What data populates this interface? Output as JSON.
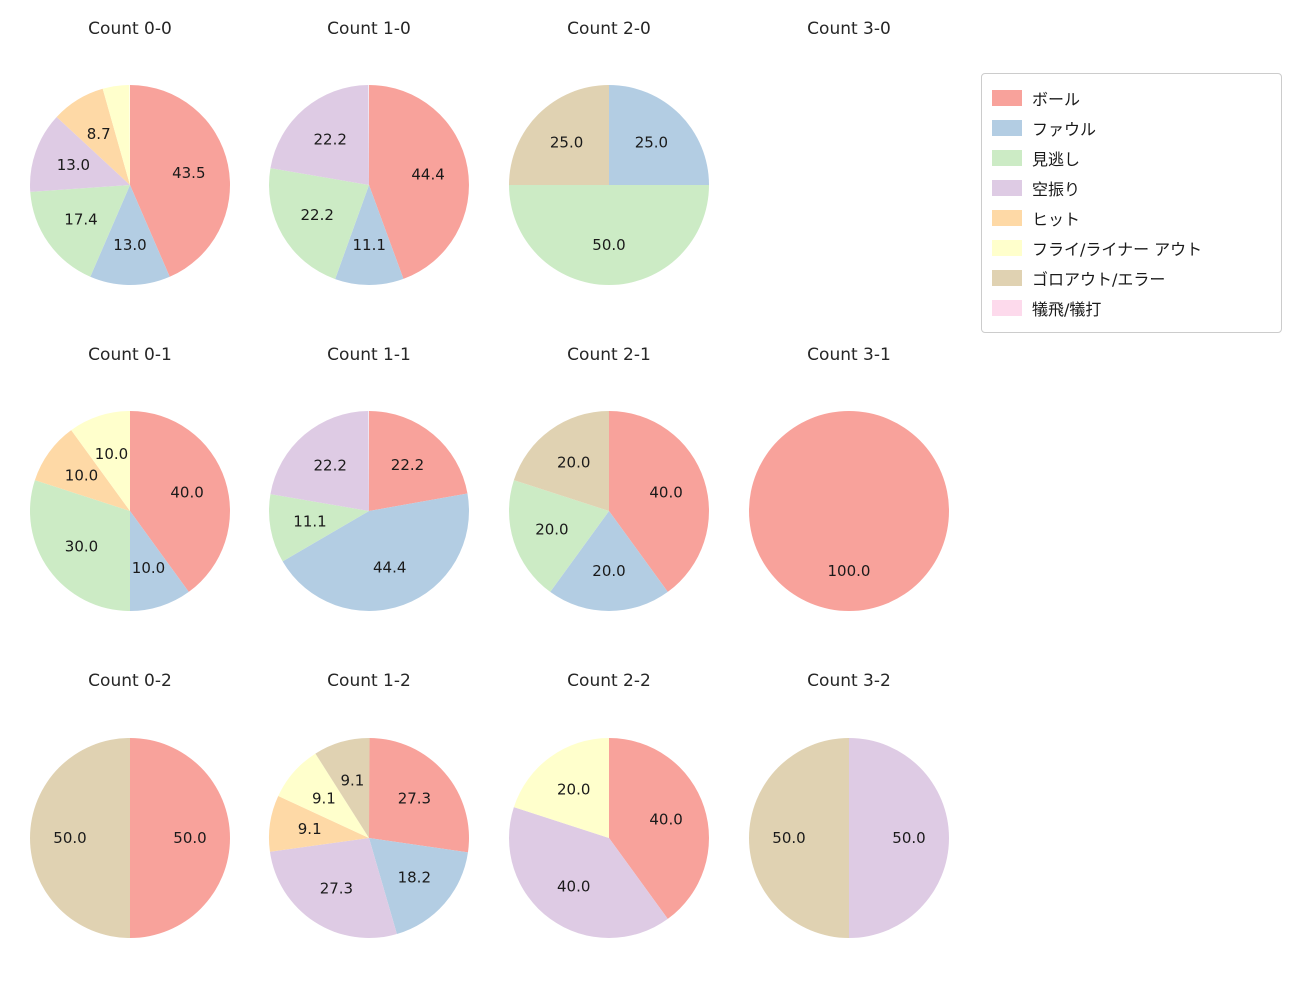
{
  "legend": {
    "items": [
      {
        "label": "ボール",
        "color": "#f8a29b"
      },
      {
        "label": "ファウル",
        "color": "#b3cde3"
      },
      {
        "label": "見逃し",
        "color": "#ccebc5"
      },
      {
        "label": "空振り",
        "color": "#decbe4"
      },
      {
        "label": "ヒット",
        "color": "#fed9a6"
      },
      {
        "label": "フライ/ライナー アウト",
        "color": "#ffffcc"
      },
      {
        "label": "ゴロアウト/エラー",
        "color": "#e0d2b2"
      },
      {
        "label": "犠飛/犠打",
        "color": "#fddaec"
      }
    ]
  },
  "chart_data": [
    {
      "type": "pie",
      "title": "Count 0-0",
      "values_unit": "percent",
      "start_angle": "top",
      "direction": "clockwise",
      "slices": [
        {
          "label": "ボール",
          "value": 43.5
        },
        {
          "label": "ファウル",
          "value": 13.0
        },
        {
          "label": "見逃し",
          "value": 17.4
        },
        {
          "label": "空振り",
          "value": 13.0
        },
        {
          "label": "ヒット",
          "value": 8.7
        },
        {
          "label": "フライ/ライナー アウト",
          "value": 4.3,
          "labeled": false
        }
      ]
    },
    {
      "type": "pie",
      "title": "Count 1-0",
      "values_unit": "percent",
      "start_angle": "top",
      "direction": "clockwise",
      "slices": [
        {
          "label": "ボール",
          "value": 44.4
        },
        {
          "label": "ファウル",
          "value": 11.1
        },
        {
          "label": "見逃し",
          "value": 22.2
        },
        {
          "label": "空振り",
          "value": 22.2
        }
      ]
    },
    {
      "type": "pie",
      "title": "Count 2-0",
      "values_unit": "percent",
      "start_angle": "top",
      "direction": "clockwise",
      "slices": [
        {
          "label": "ファウル",
          "value": 25.0
        },
        {
          "label": "見逃し",
          "value": 50.0
        },
        {
          "label": "ゴロアウト/エラー",
          "value": 25.0
        }
      ]
    },
    {
      "type": "pie",
      "title": "Count 3-0",
      "values_unit": "percent",
      "start_angle": "top",
      "direction": "clockwise",
      "slices": []
    },
    {
      "type": "pie",
      "title": "Count 0-1",
      "values_unit": "percent",
      "start_angle": "top",
      "direction": "clockwise",
      "slices": [
        {
          "label": "ボール",
          "value": 40.0
        },
        {
          "label": "ファウル",
          "value": 10.0
        },
        {
          "label": "見逃し",
          "value": 30.0
        },
        {
          "label": "ヒット",
          "value": 10.0
        },
        {
          "label": "フライ/ライナー アウト",
          "value": 10.0
        }
      ]
    },
    {
      "type": "pie",
      "title": "Count 1-1",
      "values_unit": "percent",
      "start_angle": "top",
      "direction": "clockwise",
      "slices": [
        {
          "label": "ボール",
          "value": 22.2
        },
        {
          "label": "ファウル",
          "value": 44.4
        },
        {
          "label": "見逃し",
          "value": 11.1
        },
        {
          "label": "空振り",
          "value": 22.2
        }
      ]
    },
    {
      "type": "pie",
      "title": "Count 2-1",
      "values_unit": "percent",
      "start_angle": "top",
      "direction": "clockwise",
      "slices": [
        {
          "label": "ボール",
          "value": 40.0
        },
        {
          "label": "ファウル",
          "value": 20.0
        },
        {
          "label": "見逃し",
          "value": 20.0
        },
        {
          "label": "ゴロアウト/エラー",
          "value": 20.0
        }
      ]
    },
    {
      "type": "pie",
      "title": "Count 3-1",
      "values_unit": "percent",
      "start_angle": "top",
      "direction": "clockwise",
      "slices": [
        {
          "label": "ボール",
          "value": 100.0
        }
      ]
    },
    {
      "type": "pie",
      "title": "Count 0-2",
      "values_unit": "percent",
      "start_angle": "top",
      "direction": "clockwise",
      "slices": [
        {
          "label": "ボール",
          "value": 50.0
        },
        {
          "label": "ゴロアウト/エラー",
          "value": 50.0
        }
      ]
    },
    {
      "type": "pie",
      "title": "Count 1-2",
      "values_unit": "percent",
      "start_angle": "top",
      "direction": "clockwise",
      "slices": [
        {
          "label": "ボール",
          "value": 27.3
        },
        {
          "label": "ファウル",
          "value": 18.2
        },
        {
          "label": "空振り",
          "value": 27.3
        },
        {
          "label": "ヒット",
          "value": 9.1
        },
        {
          "label": "フライ/ライナー アウト",
          "value": 9.1
        },
        {
          "label": "ゴロアウト/エラー",
          "value": 9.1
        }
      ]
    },
    {
      "type": "pie",
      "title": "Count 2-2",
      "values_unit": "percent",
      "start_angle": "top",
      "direction": "clockwise",
      "slices": [
        {
          "label": "ボール",
          "value": 40.0
        },
        {
          "label": "空振り",
          "value": 40.0
        },
        {
          "label": "フライ/ライナー アウト",
          "value": 20.0
        }
      ]
    },
    {
      "type": "pie",
      "title": "Count 3-2",
      "values_unit": "percent",
      "start_angle": "top",
      "direction": "clockwise",
      "slices": [
        {
          "label": "空振り",
          "value": 50.0
        },
        {
          "label": "ゴロアウト/エラー",
          "value": 50.0
        }
      ]
    }
  ]
}
